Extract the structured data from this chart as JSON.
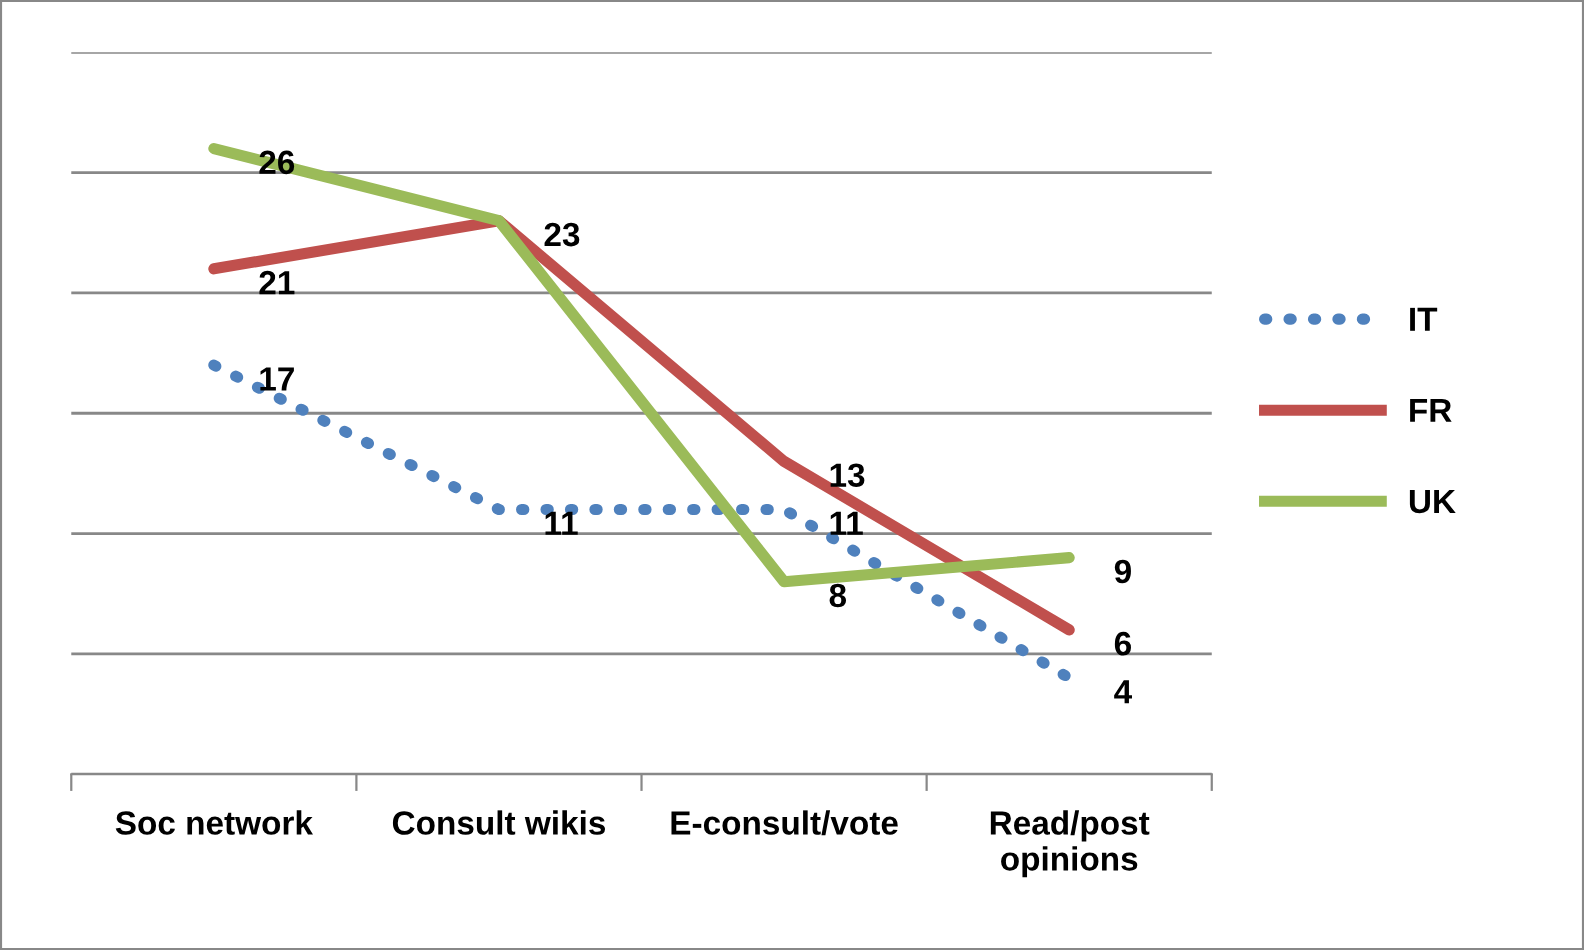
{
  "chart_data": {
    "type": "line",
    "categories": [
      "Soc network",
      "Consult wikis",
      "E-consult/vote",
      "Read/post\nopinions"
    ],
    "series": [
      {
        "name": "IT",
        "color": "#4f81bd",
        "line_style": "dotted",
        "values": [
          17,
          11,
          11,
          4
        ],
        "value_labels": [
          "17",
          "11",
          "11",
          "4"
        ]
      },
      {
        "name": "FR",
        "color": "#c0504d",
        "line_style": "solid",
        "values": [
          21,
          23,
          13,
          6
        ],
        "value_labels": [
          "21",
          "23",
          "13",
          "6"
        ]
      },
      {
        "name": "UK",
        "color": "#9bbb59",
        "line_style": "solid",
        "values": [
          26,
          23,
          8,
          9
        ],
        "value_labels": [
          "26",
          null,
          "8",
          "9"
        ]
      }
    ],
    "ylim": [
      0,
      30
    ],
    "yticks": [
      {
        "value": 0,
        "label": null
      },
      {
        "value": 5,
        "label": null
      },
      {
        "value": 10,
        "label": null
      },
      {
        "value": 15,
        "label": null
      },
      {
        "value": 20,
        "label": null
      },
      {
        "value": 25,
        "label": null
      },
      {
        "value": 30,
        "label": null
      }
    ],
    "tick_labels": "x",
    "grid": "y",
    "legend": "right",
    "marker": "none"
  }
}
